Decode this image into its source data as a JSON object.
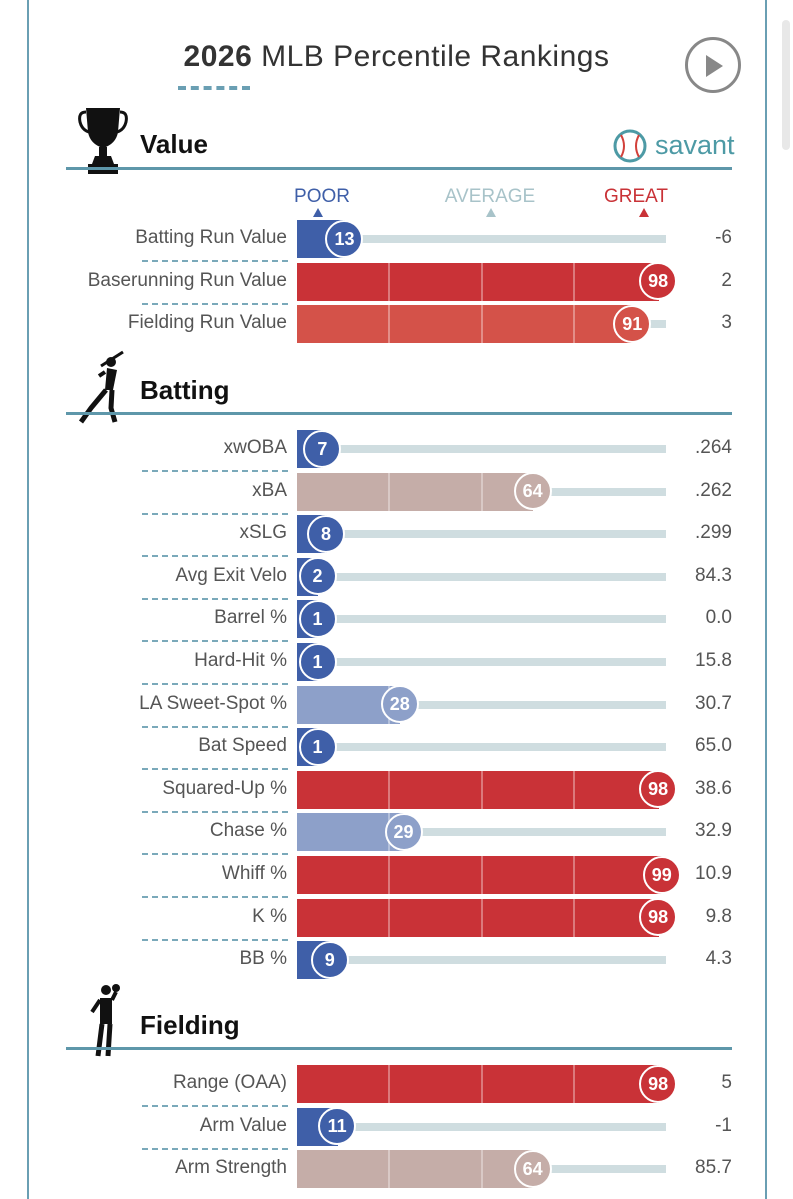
{
  "header": {
    "year": "2026",
    "title_rest": "MLB Percentile Rankings"
  },
  "brand": {
    "name": "savant"
  },
  "scale": {
    "poor": "POOR",
    "average": "AVERAGE",
    "great": "GREAT"
  },
  "colors": {
    "poor_strong": "#3f5fa8",
    "poor_light": "#8da0c9",
    "neutral": "#c5ada8",
    "great_light": "#d45249",
    "great_strong": "#c93237",
    "track": "#cfdde0",
    "accent": "#5e97aa"
  },
  "chart_data": {
    "type": "bar",
    "xlim": [
      0,
      100
    ],
    "sections": [
      {
        "name": "Value",
        "icon": "trophy-icon",
        "metrics": [
          {
            "label": "Batting Run Value",
            "percentile": 13,
            "value": "-6"
          },
          {
            "label": "Baserunning Run Value",
            "percentile": 98,
            "value": "2"
          },
          {
            "label": "Fielding Run Value",
            "percentile": 91,
            "value": "3"
          }
        ]
      },
      {
        "name": "Batting",
        "icon": "batter-icon",
        "metrics": [
          {
            "label": "xwOBA",
            "percentile": 7,
            "value": ".264"
          },
          {
            "label": "xBA",
            "percentile": 64,
            "value": ".262"
          },
          {
            "label": "xSLG",
            "percentile": 8,
            "value": ".299"
          },
          {
            "label": "Avg Exit Velo",
            "percentile": 2,
            "value": "84.3"
          },
          {
            "label": "Barrel %",
            "percentile": 1,
            "value": "0.0"
          },
          {
            "label": "Hard-Hit %",
            "percentile": 1,
            "value": "15.8"
          },
          {
            "label": "LA Sweet-Spot %",
            "percentile": 28,
            "value": "30.7"
          },
          {
            "label": "Bat Speed",
            "percentile": 1,
            "value": "65.0"
          },
          {
            "label": "Squared-Up %",
            "percentile": 98,
            "value": "38.6"
          },
          {
            "label": "Chase %",
            "percentile": 29,
            "value": "32.9"
          },
          {
            "label": "Whiff %",
            "percentile": 99,
            "value": "10.9"
          },
          {
            "label": "K %",
            "percentile": 98,
            "value": "9.8"
          },
          {
            "label": "BB %",
            "percentile": 9,
            "value": "4.3"
          }
        ]
      },
      {
        "name": "Fielding",
        "icon": "fielder-icon",
        "metrics": [
          {
            "label": "Range (OAA)",
            "percentile": 98,
            "value": "5"
          },
          {
            "label": "Arm Value",
            "percentile": 11,
            "value": "-1"
          },
          {
            "label": "Arm Strength",
            "percentile": 64,
            "value": "85.7"
          }
        ]
      }
    ]
  }
}
